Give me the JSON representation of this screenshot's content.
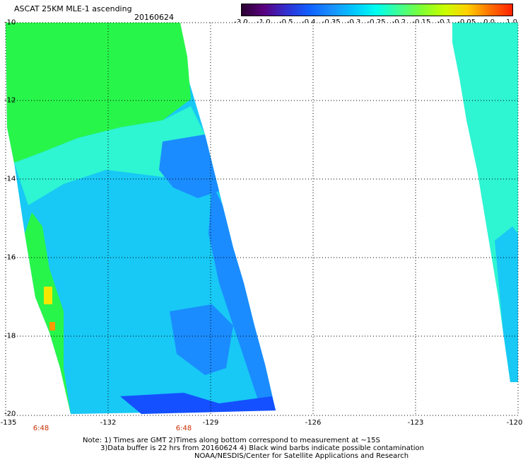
{
  "header": {
    "title": "ASCAT 25KM MLE-1 ascending",
    "date": "20160624"
  },
  "colorbar": {
    "labels": [
      "-3.0",
      "-1.0",
      "-0.5",
      "-0.4",
      "-0.35",
      "-0.3",
      "-0.25",
      "-0.2",
      "-0.15",
      "-0.1",
      "-0.05",
      "0.0",
      "1.0"
    ],
    "colors": [
      "#2a0030",
      "#5a0080",
      "#3030d0",
      "#1060ff",
      "#1a90ff",
      "#00c8ff",
      "#00ffee",
      "#40ff90",
      "#80ff30",
      "#c8ff00",
      "#ffd000",
      "#ff7000",
      "#ff2000"
    ]
  },
  "map": {
    "lat_labels": [
      "-10",
      "-12",
      "-14",
      "-16",
      "-18",
      "-20"
    ],
    "lon_labels": [
      "-135",
      "-132",
      "-129",
      "-126",
      "-123",
      "-120"
    ],
    "time_labels": [
      "6:48",
      "6:48"
    ],
    "swath_colors": {
      "green": "#28f54a",
      "light_green": "#4af58a",
      "aqua": "#2ef5d2",
      "cyan": "#1ee6f0",
      "sky": "#18c8f5",
      "blue": "#1a8cff",
      "deep_blue": "#1450ff",
      "yellow": "#f5e600",
      "orange": "#ff9a00"
    }
  },
  "notes": {
    "line1": "Note: 1) Times are GMT 2)Times along bottom correspond to measurement at ~15S",
    "line2": "3)Data buffer is 22 hrs from 20160624 4) Black wind barbs indicate possible contamination",
    "line3": "NOAA/NESDIS/Center for Satellite Applications and Research"
  }
}
